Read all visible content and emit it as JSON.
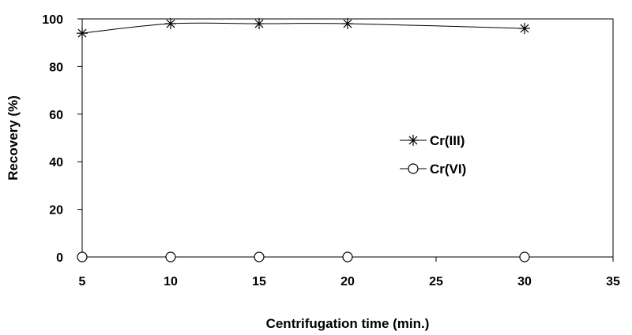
{
  "chart_data": {
    "type": "line",
    "xlabel": "Centrifugation time (min.)",
    "ylabel": "Recovery (%)",
    "xlim": [
      5,
      35
    ],
    "ylim": [
      0,
      100
    ],
    "x_ticks": [
      5,
      10,
      15,
      20,
      25,
      30,
      35
    ],
    "y_ticks": [
      0,
      20,
      40,
      60,
      80,
      100
    ],
    "grid": false,
    "legend_position": "center-right",
    "series": [
      {
        "name": "Cr(III)",
        "marker": "asterisk",
        "color": "#000000",
        "x": [
          5,
          10,
          15,
          20,
          30
        ],
        "values": [
          94,
          98,
          98,
          98,
          96
        ]
      },
      {
        "name": "Cr(VI)",
        "marker": "circle",
        "color": "#000000",
        "x": [
          5,
          10,
          15,
          20,
          30
        ],
        "values": [
          0,
          0,
          0,
          0,
          0
        ]
      }
    ]
  }
}
